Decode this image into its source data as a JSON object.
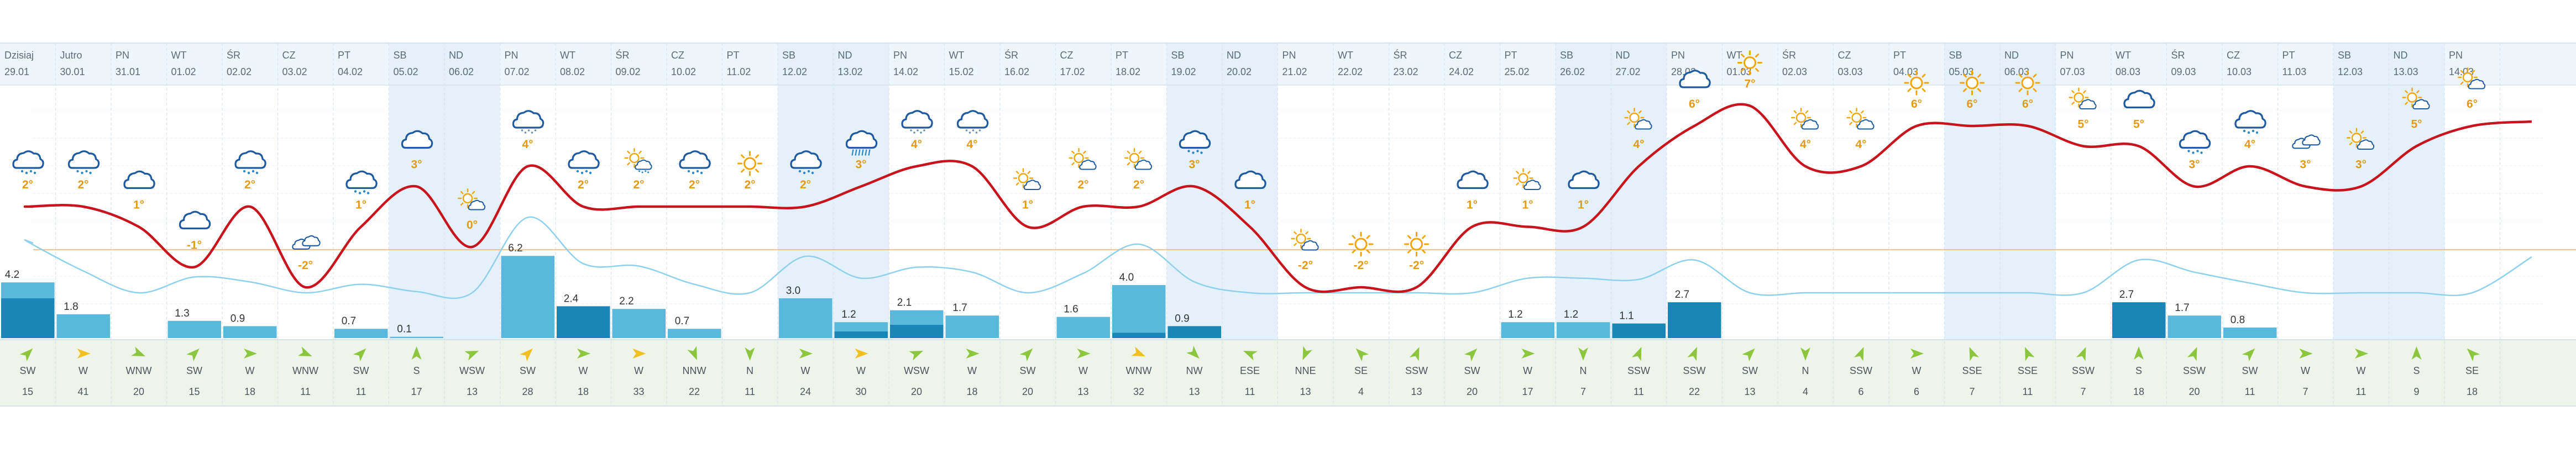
{
  "colors": {
    "weekend_bg": "#e4f1fa",
    "header_bg": "#eef6fc",
    "temp_line": "#c8141c",
    "precip_line": "#8fd0ec",
    "bar_light": "#5ab8dc",
    "bar_dark": "#1a86b8",
    "wind_bg": "#eef4ea",
    "arrow_green": "#8cc63f",
    "arrow_yellow": "#f0c020",
    "zero_line": "#f0b070"
  },
  "days": [
    {
      "day": "Dzisiaj",
      "date": "29.01",
      "icon": "rain-cloud-icon",
      "temp": "2°",
      "temp_val": 2,
      "rain": "4.2",
      "rain_val": 4.2,
      "rain_dark": 3.0,
      "dir": "SW",
      "speed": "15",
      "arrow_color": "green",
      "weekend": false
    },
    {
      "day": "Jutro",
      "date": "30.01",
      "icon": "rain-cloud-icon",
      "temp": "2°",
      "temp_val": 2,
      "rain": "1.8",
      "rain_val": 1.8,
      "rain_dark": 0,
      "dir": "W",
      "speed": "41",
      "arrow_color": "yellow",
      "weekend": false
    },
    {
      "day": "PN",
      "date": "31.01",
      "icon": "cloud-icon",
      "temp": "1°",
      "temp_val": 1,
      "rain": "",
      "rain_val": 0,
      "rain_dark": 0,
      "dir": "WNW",
      "speed": "20",
      "arrow_color": "green",
      "weekend": false
    },
    {
      "day": "WT",
      "date": "01.02",
      "icon": "cloud-icon",
      "temp": "-1°",
      "temp_val": -1,
      "rain": "1.3",
      "rain_val": 1.3,
      "rain_dark": 0,
      "dir": "SW",
      "speed": "15",
      "arrow_color": "green",
      "weekend": false
    },
    {
      "day": "ŚR",
      "date": "02.02",
      "icon": "rain-cloud-icon",
      "temp": "2°",
      "temp_val": 2,
      "rain": "0.9",
      "rain_val": 0.9,
      "rain_dark": 0,
      "dir": "W",
      "speed": "18",
      "arrow_color": "green",
      "weekend": false
    },
    {
      "day": "CZ",
      "date": "03.02",
      "icon": "cloudy-icon",
      "temp": "-2°",
      "temp_val": -2,
      "rain": "",
      "rain_val": 0,
      "rain_dark": 0,
      "dir": "WNW",
      "speed": "11",
      "arrow_color": "green",
      "weekend": false
    },
    {
      "day": "PT",
      "date": "04.02",
      "icon": "rain-cloud-icon",
      "temp": "1°",
      "temp_val": 1,
      "rain": "0.7",
      "rain_val": 0.7,
      "rain_dark": 0,
      "dir": "SW",
      "speed": "11",
      "arrow_color": "green",
      "weekend": false
    },
    {
      "day": "SB",
      "date": "05.02",
      "icon": "cloud-icon",
      "temp": "3°",
      "temp_val": 3,
      "rain": "0.1",
      "rain_val": 0.1,
      "rain_dark": 0,
      "dir": "S",
      "speed": "17",
      "arrow_color": "green",
      "weekend": true
    },
    {
      "day": "ND",
      "date": "06.02",
      "icon": "sun-cloud-icon",
      "temp": "0°",
      "temp_val": 0,
      "rain": "",
      "rain_val": 0,
      "rain_dark": 0,
      "dir": "WSW",
      "speed": "13",
      "arrow_color": "green",
      "weekend": true
    },
    {
      "day": "PN",
      "date": "07.02",
      "icon": "snow-cloud-icon",
      "temp": "4°",
      "temp_val": 4,
      "rain": "6.2",
      "rain_val": 6.2,
      "rain_dark": 0,
      "dir": "SW",
      "speed": "28",
      "arrow_color": "yellow",
      "weekend": false
    },
    {
      "day": "WT",
      "date": "08.02",
      "icon": "rain-cloud-icon",
      "temp": "2°",
      "temp_val": 2,
      "rain": "2.4",
      "rain_val": 2.4,
      "rain_dark": 2.4,
      "dir": "W",
      "speed": "18",
      "arrow_color": "green",
      "weekend": false
    },
    {
      "day": "ŚR",
      "date": "09.02",
      "icon": "sun-rain-icon",
      "temp": "2°",
      "temp_val": 2,
      "rain": "2.2",
      "rain_val": 2.2,
      "rain_dark": 0,
      "dir": "W",
      "speed": "33",
      "arrow_color": "yellow",
      "weekend": false
    },
    {
      "day": "CZ",
      "date": "10.02",
      "icon": "rain-cloud-icon",
      "temp": "2°",
      "temp_val": 2,
      "rain": "0.7",
      "rain_val": 0.7,
      "rain_dark": 0,
      "dir": "NNW",
      "speed": "22",
      "arrow_color": "green",
      "weekend": false
    },
    {
      "day": "PT",
      "date": "11.02",
      "icon": "sun-icon",
      "temp": "2°",
      "temp_val": 2,
      "rain": "",
      "rain_val": 0,
      "rain_dark": 0,
      "dir": "N",
      "speed": "11",
      "arrow_color": "green",
      "weekend": false
    },
    {
      "day": "SB",
      "date": "12.02",
      "icon": "rain-cloud-icon",
      "temp": "2°",
      "temp_val": 2,
      "rain": "3.0",
      "rain_val": 3.0,
      "rain_dark": 0,
      "dir": "W",
      "speed": "24",
      "arrow_color": "green",
      "weekend": true
    },
    {
      "day": "ND",
      "date": "13.02",
      "icon": "heavy-rain-icon",
      "temp": "3°",
      "temp_val": 3,
      "rain": "1.2",
      "rain_val": 1.2,
      "rain_dark": 0.5,
      "dir": "W",
      "speed": "30",
      "arrow_color": "yellow",
      "weekend": true
    },
    {
      "day": "PN",
      "date": "14.02",
      "icon": "snow-cloud-icon",
      "temp": "4°",
      "temp_val": 4,
      "rain": "2.1",
      "rain_val": 2.1,
      "rain_dark": 1.0,
      "dir": "WSW",
      "speed": "20",
      "arrow_color": "green",
      "weekend": false
    },
    {
      "day": "WT",
      "date": "15.02",
      "icon": "snow-cloud-icon",
      "temp": "4°",
      "temp_val": 4,
      "rain": "1.7",
      "rain_val": 1.7,
      "rain_dark": 0,
      "dir": "W",
      "speed": "18",
      "arrow_color": "green",
      "weekend": false
    },
    {
      "day": "ŚR",
      "date": "16.02",
      "icon": "sun-cloud-icon",
      "temp": "1°",
      "temp_val": 1,
      "rain": "",
      "rain_val": 0,
      "rain_dark": 0,
      "dir": "SW",
      "speed": "20",
      "arrow_color": "green",
      "weekend": false
    },
    {
      "day": "CZ",
      "date": "17.02",
      "icon": "sun-cloud-icon",
      "temp": "2°",
      "temp_val": 2,
      "rain": "1.6",
      "rain_val": 1.6,
      "rain_dark": 0,
      "dir": "W",
      "speed": "13",
      "arrow_color": "green",
      "weekend": false
    },
    {
      "day": "PT",
      "date": "18.02",
      "icon": "sun-cloud-icon",
      "temp": "2°",
      "temp_val": 2,
      "rain": "4.0",
      "rain_val": 4.0,
      "rain_dark": 0.4,
      "dir": "WNW",
      "speed": "32",
      "arrow_color": "yellow",
      "weekend": false
    },
    {
      "day": "SB",
      "date": "19.02",
      "icon": "rain-cloud-icon",
      "temp": "3°",
      "temp_val": 3,
      "rain": "0.9",
      "rain_val": 0.9,
      "rain_dark": 0.9,
      "dir": "NW",
      "speed": "13",
      "arrow_color": "green",
      "weekend": true
    },
    {
      "day": "ND",
      "date": "20.02",
      "icon": "cloud-icon",
      "temp": "1°",
      "temp_val": 1,
      "rain": "",
      "rain_val": 0,
      "rain_dark": 0,
      "dir": "ESE",
      "speed": "11",
      "arrow_color": "green",
      "weekend": true
    },
    {
      "day": "PN",
      "date": "21.02",
      "icon": "sun-cloud-icon",
      "temp": "-2°",
      "temp_val": -2,
      "rain": "",
      "rain_val": 0,
      "rain_dark": 0,
      "dir": "NNE",
      "speed": "13",
      "arrow_color": "green",
      "weekend": false
    },
    {
      "day": "WT",
      "date": "22.02",
      "icon": "sun-icon",
      "temp": "-2°",
      "temp_val": -2,
      "rain": "",
      "rain_val": 0,
      "rain_dark": 0,
      "dir": "SE",
      "speed": "4",
      "arrow_color": "green",
      "weekend": false
    },
    {
      "day": "ŚR",
      "date": "23.02",
      "icon": "sun-icon",
      "temp": "-2°",
      "temp_val": -2,
      "rain": "",
      "rain_val": 0,
      "rain_dark": 0,
      "dir": "SSW",
      "speed": "13",
      "arrow_color": "green",
      "weekend": false
    },
    {
      "day": "CZ",
      "date": "24.02",
      "icon": "cloud-icon",
      "temp": "1°",
      "temp_val": 1,
      "rain": "",
      "rain_val": 0,
      "rain_dark": 0,
      "dir": "SW",
      "speed": "20",
      "arrow_color": "green",
      "weekend": false
    },
    {
      "day": "PT",
      "date": "25.02",
      "icon": "sun-cloud-icon",
      "temp": "1°",
      "temp_val": 1,
      "rain": "1.2",
      "rain_val": 1.2,
      "rain_dark": 0,
      "dir": "W",
      "speed": "17",
      "arrow_color": "green",
      "weekend": false
    },
    {
      "day": "SB",
      "date": "26.02",
      "icon": "cloud-icon",
      "temp": "1°",
      "temp_val": 1,
      "rain": "1.2",
      "rain_val": 1.2,
      "rain_dark": 0,
      "dir": "N",
      "speed": "7",
      "arrow_color": "green",
      "weekend": true
    },
    {
      "day": "ND",
      "date": "27.02",
      "icon": "sun-cloud-icon",
      "temp": "4°",
      "temp_val": 4,
      "rain": "1.1",
      "rain_val": 1.1,
      "rain_dark": 1.1,
      "dir": "SSW",
      "speed": "11",
      "arrow_color": "green",
      "weekend": true
    },
    {
      "day": "PN",
      "date": "28.02",
      "icon": "cloud-icon",
      "temp": "6°",
      "temp_val": 6,
      "rain": "2.7",
      "rain_val": 2.7,
      "rain_dark": 2.7,
      "dir": "SSW",
      "speed": "22",
      "arrow_color": "green",
      "weekend": false
    },
    {
      "day": "WT",
      "date": "01.03",
      "icon": "sun-icon",
      "temp": "7°",
      "temp_val": 7,
      "rain": "",
      "rain_val": 0,
      "rain_dark": 0,
      "dir": "SW",
      "speed": "13",
      "arrow_color": "green",
      "weekend": false
    },
    {
      "day": "ŚR",
      "date": "02.03",
      "icon": "sun-cloud-icon",
      "temp": "4°",
      "temp_val": 4,
      "rain": "",
      "rain_val": 0,
      "rain_dark": 0,
      "dir": "N",
      "speed": "4",
      "arrow_color": "green",
      "weekend": false
    },
    {
      "day": "CZ",
      "date": "03.03",
      "icon": "sun-cloud-icon",
      "temp": "4°",
      "temp_val": 4,
      "rain": "",
      "rain_val": 0,
      "rain_dark": 0,
      "dir": "SSW",
      "speed": "6",
      "arrow_color": "green",
      "weekend": false
    },
    {
      "day": "PT",
      "date": "04.03",
      "icon": "sun-icon",
      "temp": "6°",
      "temp_val": 6,
      "rain": "",
      "rain_val": 0,
      "rain_dark": 0,
      "dir": "W",
      "speed": "6",
      "arrow_color": "green",
      "weekend": false
    },
    {
      "day": "SB",
      "date": "05.03",
      "icon": "sun-icon",
      "temp": "6°",
      "temp_val": 6,
      "rain": "",
      "rain_val": 0,
      "rain_dark": 0,
      "dir": "SSE",
      "speed": "7",
      "arrow_color": "green",
      "weekend": true
    },
    {
      "day": "ND",
      "date": "06.03",
      "icon": "sun-icon",
      "temp": "6°",
      "temp_val": 6,
      "rain": "",
      "rain_val": 0,
      "rain_dark": 0,
      "dir": "SSE",
      "speed": "11",
      "arrow_color": "green",
      "weekend": true
    },
    {
      "day": "PN",
      "date": "07.03",
      "icon": "sun-cloud-icon",
      "temp": "5°",
      "temp_val": 5,
      "rain": "",
      "rain_val": 0,
      "rain_dark": 0,
      "dir": "SSW",
      "speed": "7",
      "arrow_color": "green",
      "weekend": false
    },
    {
      "day": "WT",
      "date": "08.03",
      "icon": "cloud-icon",
      "temp": "5°",
      "temp_val": 5,
      "rain": "2.7",
      "rain_val": 2.7,
      "rain_dark": 2.7,
      "dir": "S",
      "speed": "18",
      "arrow_color": "green",
      "weekend": false
    },
    {
      "day": "ŚR",
      "date": "09.03",
      "icon": "rain-cloud-icon",
      "temp": "3°",
      "temp_val": 3,
      "rain": "1.7",
      "rain_val": 1.7,
      "rain_dark": 0,
      "dir": "SSW",
      "speed": "20",
      "arrow_color": "green",
      "weekend": false
    },
    {
      "day": "CZ",
      "date": "10.03",
      "icon": "rain-cloud-icon",
      "temp": "4°",
      "temp_val": 4,
      "rain": "0.8",
      "rain_val": 0.8,
      "rain_dark": 0,
      "dir": "SW",
      "speed": "11",
      "arrow_color": "green",
      "weekend": false
    },
    {
      "day": "PT",
      "date": "11.03",
      "icon": "cloudy-icon",
      "temp": "3°",
      "temp_val": 3,
      "rain": "",
      "rain_val": 0,
      "rain_dark": 0,
      "dir": "W",
      "speed": "7",
      "arrow_color": "green",
      "weekend": false
    },
    {
      "day": "SB",
      "date": "12.03",
      "icon": "sun-cloud-icon",
      "temp": "3°",
      "temp_val": 3,
      "rain": "",
      "rain_val": 0,
      "rain_dark": 0,
      "dir": "W",
      "speed": "11",
      "arrow_color": "green",
      "weekend": true
    },
    {
      "day": "ND",
      "date": "13.03",
      "icon": "sun-cloud-icon",
      "temp": "5°",
      "temp_val": 5,
      "rain": "",
      "rain_val": 0,
      "rain_dark": 0,
      "dir": "S",
      "speed": "9",
      "arrow_color": "green",
      "weekend": true
    },
    {
      "day": "PN",
      "date": "14.03",
      "icon": "sun-cloud-icon",
      "temp": "6°",
      "temp_val": 6,
      "rain": "",
      "rain_val": 0,
      "rain_dark": 0,
      "dir": "SE",
      "speed": "18",
      "arrow_color": "green",
      "weekend": false
    }
  ],
  "chart_data": {
    "type": "line",
    "categories": [
      "29.01",
      "30.01",
      "31.01",
      "01.02",
      "02.02",
      "03.02",
      "04.02",
      "05.02",
      "06.02",
      "07.02",
      "08.02",
      "09.02",
      "10.02",
      "11.02",
      "12.02",
      "13.02",
      "14.02",
      "15.02",
      "16.02",
      "17.02",
      "18.02",
      "19.02",
      "20.02",
      "21.02",
      "22.02",
      "23.02",
      "24.02",
      "25.02",
      "26.02",
      "27.02",
      "28.02",
      "01.03",
      "02.03",
      "03.03",
      "04.03",
      "05.03",
      "06.03",
      "07.03",
      "08.03",
      "09.03",
      "10.03",
      "11.03",
      "12.03",
      "13.03",
      "14.03"
    ],
    "series": [
      {
        "values": [
          2,
          2,
          1,
          -1,
          2,
          -2,
          1,
          3,
          0,
          4,
          2,
          2,
          2,
          2,
          2,
          3,
          4,
          4,
          1,
          2,
          2,
          3,
          1,
          -2,
          -2,
          -2,
          1,
          1,
          1,
          4,
          6,
          7,
          4,
          4,
          6,
          6,
          6,
          5,
          5,
          3,
          4,
          3,
          3,
          5,
          6
        ]
      },
      {
        "values": [
          4.2,
          1.8,
          0,
          1.3,
          0.9,
          0,
          0.7,
          0.1,
          0,
          6.2,
          2.4,
          2.2,
          0.7,
          0,
          3.0,
          1.2,
          2.1,
          1.7,
          0,
          1.6,
          4.0,
          0.9,
          0,
          0,
          0,
          0,
          0,
          1.2,
          1.2,
          1.1,
          2.7,
          0,
          0,
          0,
          0,
          0,
          0,
          0,
          2.7,
          1.7,
          0.8,
          0,
          0,
          0,
          0
        ]
      }
    ]
  }
}
